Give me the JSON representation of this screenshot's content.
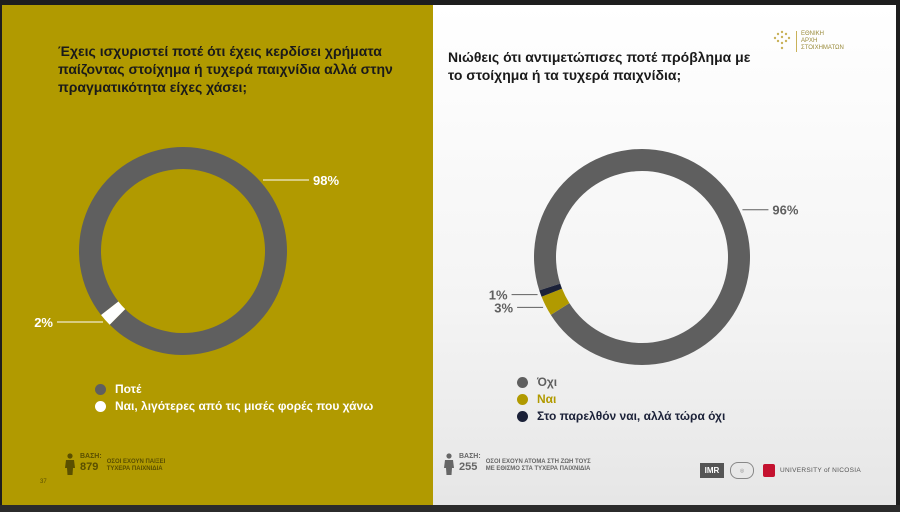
{
  "left": {
    "question": "Έχεις ισχυριστεί ποτέ ότι έχεις κερδίσει χρήματα παίζοντας στοίχημα ή τυχερά παιχνίδια αλλά στην πραγματικότητα είχες χάσει;",
    "base_label": "ΒΑΣΗ:",
    "base_number": "879",
    "base_desc_1": "ΟΣΟΙ ΕΧΟΥΝ ΠΑΙΞΕΙ",
    "base_desc_2": "ΤΥΧΕΡΑ ΠΑΙΧΝΙΔΙΑ",
    "page_number": "37"
  },
  "right": {
    "question": "Νιώθεις ότι αντιμετώπισες ποτέ πρόβλημα με το στοίχημα ή τα τυχερά παιχνίδια;",
    "base_label": "ΒΑΣΗ:",
    "base_number": "255",
    "base_desc_1": "ΟΣΟΙ ΕΧΟΥΝ ΑΤΟΜΑ ΣΤΗ ΖΩΗ ΤΟΥΣ",
    "base_desc_2": "ΜΕ ΕΘΙΣΜΟ ΣΤΑ ΤΥΧΕΡΑ ΠΑΙΧΝΙΔΙΑ"
  },
  "logos": {
    "eea_line1": "ΕΘΝΙΚΗ",
    "eea_line2": "ΑΡΧΗ",
    "eea_line3": "ΣΤΟΙΧΗΜΑΤΩΝ",
    "imr": "IMR",
    "unic": "UNIVERSITY of NICOSIA"
  },
  "colors": {
    "grey": "#5f5f5f",
    "gold": "#b19a00",
    "white": "#ffffff",
    "navy": "#1b2138"
  },
  "chart_data": [
    {
      "type": "pie",
      "donut": true,
      "slices": [
        {
          "label": "Ποτέ",
          "value": 98,
          "value_label": "98%",
          "color": "#5f5f5f"
        },
        {
          "label": "Ναι, λιγότερες από τις μισές φορές που χάνω",
          "value": 2,
          "value_label": "2%",
          "color": "#ffffff"
        }
      ],
      "legend_position": "bottom"
    },
    {
      "type": "pie",
      "donut": true,
      "slices": [
        {
          "label": "Όχι",
          "value": 96,
          "value_label": "96%",
          "color": "#5f5f5f"
        },
        {
          "label": "Ναι",
          "value": 3,
          "value_label": "3%",
          "color": "#b19a00"
        },
        {
          "label": "Στο παρελθόν ναι, αλλά τώρα όχι",
          "value": 1,
          "value_label": "1%",
          "color": "#1b2138"
        }
      ],
      "legend_position": "bottom"
    }
  ]
}
